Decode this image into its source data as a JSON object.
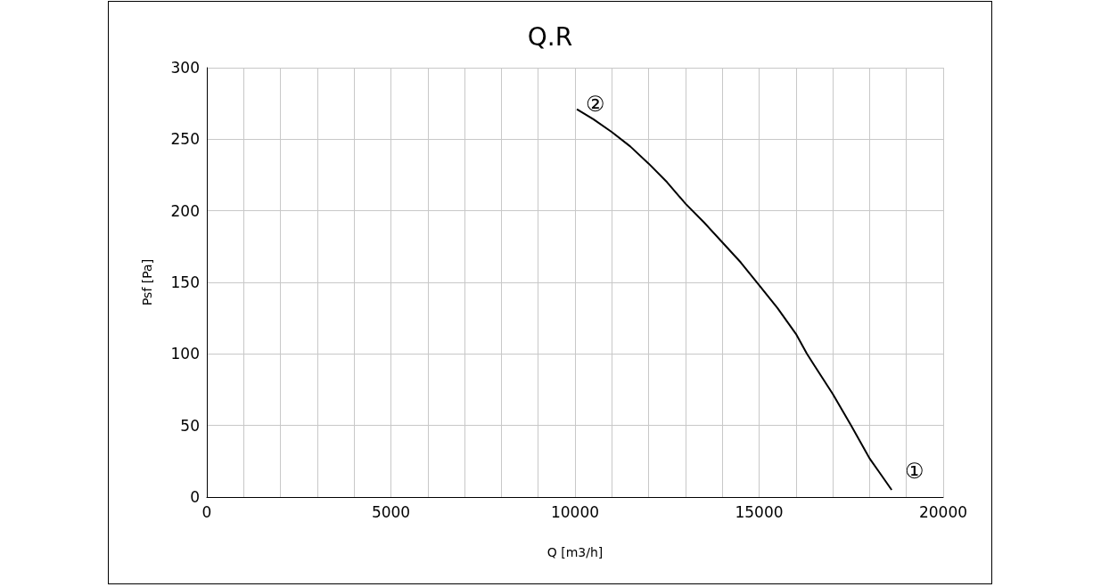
{
  "chart_data": {
    "type": "line",
    "title": "Q.R",
    "xlabel": "Q [m3/h]",
    "ylabel": "Psf [Pa]",
    "series": [
      {
        "color": "#000000",
        "x": [
          10050,
          10500,
          11000,
          11500,
          12000,
          12500,
          13000,
          13500,
          14000,
          14500,
          15000,
          15500,
          16000,
          16300,
          16500,
          17000,
          17500,
          18000,
          18300,
          18600
        ],
        "values": [
          271,
          264,
          255,
          245,
          233,
          220,
          205,
          192,
          178,
          164,
          148,
          132,
          114,
          100,
          92,
          72,
          50,
          27,
          16,
          5
        ]
      }
    ],
    "xlim": [
      0,
      20000
    ],
    "xticks": [
      0,
      {
        "value": 1000,
        "label": null
      },
      {
        "value": 2000,
        "label": null
      },
      {
        "value": 3000,
        "label": null
      },
      {
        "value": 4000,
        "label": null
      },
      5000,
      {
        "value": 6000,
        "label": null
      },
      {
        "value": 7000,
        "label": null
      },
      {
        "value": 8000,
        "label": null
      },
      {
        "value": 9000,
        "label": null
      },
      10000,
      {
        "value": 11000,
        "label": null
      },
      {
        "value": 12000,
        "label": null
      },
      {
        "value": 13000,
        "label": null
      },
      {
        "value": 14000,
        "label": null
      },
      15000,
      {
        "value": 16000,
        "label": null
      },
      {
        "value": 17000,
        "label": null
      },
      {
        "value": 18000,
        "label": null
      },
      {
        "value": 19000,
        "label": null
      },
      20000
    ],
    "ylim": [
      0,
      300
    ],
    "yticks": [
      0,
      50,
      100,
      150,
      200,
      250,
      300
    ],
    "annotations": [
      "②",
      "①"
    ],
    "grid": true,
    "marker": "none",
    "line_style": "solid"
  }
}
